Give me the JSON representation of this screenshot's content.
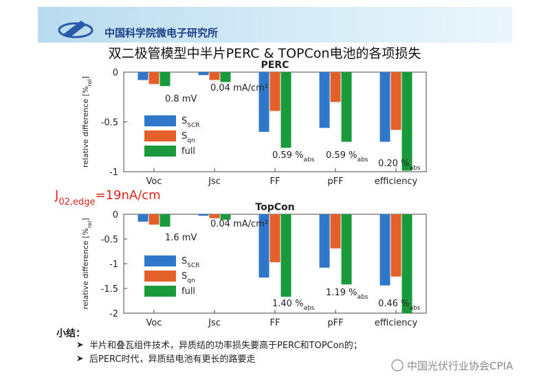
{
  "header": {
    "org": "中国科学院微电子研究所",
    "title": "双二极管模型中半片PERC & TOPCon电池的各项损失"
  },
  "note": {
    "text": "J",
    "sub": "02,edge",
    "rest": "=19nA/cm"
  },
  "summary": {
    "heading": "小结：",
    "bullets": [
      "半片和叠瓦组件技术，异质结的功率损失要高于PERC和TOPCon的；",
      "后PERC时代，异质结电池有更长的路要走"
    ]
  },
  "watermark": "中国光伏行业协会CPIA",
  "chart_data": [
    {
      "type": "bar",
      "title": "PERC",
      "y_label": "relative difference [%",
      "y_label_sub": "rel",
      "y_label_end": "]",
      "categories": [
        "Voc",
        "Jsc",
        "FF",
        "pFF",
        "efficiency"
      ],
      "series": [
        {
          "name": "S",
          "subscript": "SCR",
          "color": "#2f77c8",
          "values": [
            -0.08,
            -0.03,
            -0.6,
            -0.56,
            -0.7
          ]
        },
        {
          "name": "S",
          "subscript": "qn",
          "color": "#e4602a",
          "values": [
            -0.12,
            -0.08,
            -0.39,
            -0.3,
            -0.58
          ]
        },
        {
          "name": "full",
          "color": "#1a9a3a",
          "values": [
            -0.14,
            -0.1,
            -0.76,
            -0.7,
            -0.99
          ]
        }
      ],
      "ylim": [
        -1,
        0
      ],
      "yticks": [
        0,
        -0.5,
        -1
      ],
      "annotations": [
        {
          "text": "0.8 mV"
        },
        {
          "text": "0.04 mA/cm²"
        },
        {
          "text": "0.59 %",
          "sub": "abs"
        },
        {
          "text": "0.59 %",
          "sub": "abs"
        },
        {
          "text": "0.20 %",
          "sub": "abs"
        }
      ]
    },
    {
      "type": "bar",
      "title": "TopCon",
      "y_label": "relative difference [%",
      "y_label_sub": "rel",
      "y_label_end": "]",
      "categories": [
        "Voc",
        "Jsc",
        "FF",
        "pFF",
        "efficiency"
      ],
      "series": [
        {
          "name": "S",
          "subscript": "SCR",
          "color": "#2f77c8",
          "values": [
            -0.15,
            -0.03,
            -1.28,
            -1.08,
            -1.44
          ]
        },
        {
          "name": "S",
          "subscript": "qn",
          "color": "#e4602a",
          "values": [
            -0.21,
            -0.08,
            -0.97,
            -0.69,
            -1.26
          ]
        },
        {
          "name": "full",
          "color": "#1a9a3a",
          "values": [
            -0.25,
            -0.11,
            -1.67,
            -1.42,
            -2
          ]
        }
      ],
      "ylim": [
        -2,
        0
      ],
      "yticks": [
        0,
        -0.5,
        -1,
        -1.5,
        -2
      ],
      "annotations": [
        {
          "text": "1.6 mV"
        },
        {
          "text": "0.04 mA/cm²"
        },
        {
          "text": "1.40 %",
          "sub": "abs"
        },
        {
          "text": "1.19 %",
          "sub": "abs"
        },
        {
          "text": "0.46 %",
          "sub": "abs"
        }
      ]
    }
  ]
}
